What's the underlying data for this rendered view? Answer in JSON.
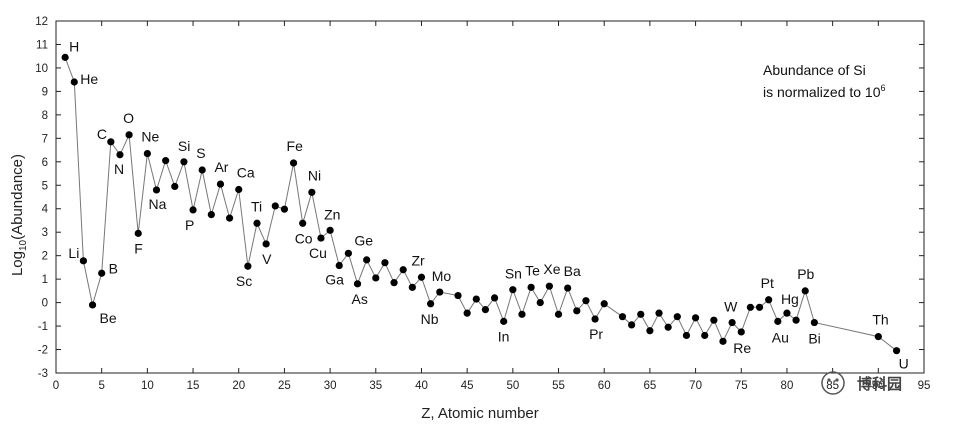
{
  "chart_data": {
    "type": "line",
    "xlabel": "Z, Atomic number",
    "ylabel_main": "Log",
    "ylabel_sub": "10",
    "ylabel_rest": "(Abundance)",
    "xlim": [
      0,
      95
    ],
    "ylim": [
      -3,
      12
    ],
    "xticks": [
      0,
      5,
      10,
      15,
      20,
      25,
      30,
      35,
      40,
      45,
      50,
      55,
      60,
      65,
      70,
      75,
      80,
      85,
      90,
      95
    ],
    "yticks": [
      -3,
      -2,
      -1,
      0,
      1,
      2,
      3,
      4,
      5,
      6,
      7,
      8,
      9,
      10,
      11,
      12
    ],
    "annotation": {
      "line1": "Abundance of Si",
      "line2_main": "is normalized to 10",
      "line2_sup": "6"
    },
    "points": [
      [
        1,
        10.45
      ],
      [
        2,
        9.4
      ],
      [
        3,
        1.78
      ],
      [
        4,
        -0.1
      ],
      [
        5,
        1.25
      ],
      [
        6,
        6.85
      ],
      [
        7,
        6.3
      ],
      [
        8,
        7.15
      ],
      [
        9,
        2.95
      ],
      [
        10,
        6.35
      ],
      [
        11,
        4.8
      ],
      [
        12,
        6.05
      ],
      [
        13,
        4.95
      ],
      [
        14,
        6.0
      ],
      [
        15,
        3.95
      ],
      [
        16,
        5.65
      ],
      [
        17,
        3.75
      ],
      [
        18,
        5.05
      ],
      [
        19,
        3.6
      ],
      [
        20,
        4.82
      ],
      [
        21,
        1.55
      ],
      [
        22,
        3.38
      ],
      [
        23,
        2.5
      ],
      [
        24,
        4.12
      ],
      [
        25,
        3.98
      ],
      [
        26,
        5.95
      ],
      [
        27,
        3.38
      ],
      [
        28,
        4.7
      ],
      [
        29,
        2.75
      ],
      [
        30,
        3.08
      ],
      [
        31,
        1.58
      ],
      [
        32,
        2.1
      ],
      [
        33,
        0.8
      ],
      [
        34,
        1.82
      ],
      [
        35,
        1.05
      ],
      [
        36,
        1.7
      ],
      [
        37,
        0.85
      ],
      [
        38,
        1.4
      ],
      [
        39,
        0.65
      ],
      [
        40,
        1.08
      ],
      [
        41,
        -0.05
      ],
      [
        42,
        0.45
      ],
      [
        44,
        0.3
      ],
      [
        45,
        -0.45
      ],
      [
        46,
        0.15
      ],
      [
        47,
        -0.3
      ],
      [
        48,
        0.2
      ],
      [
        49,
        -0.8
      ],
      [
        50,
        0.55
      ],
      [
        51,
        -0.5
      ],
      [
        52,
        0.65
      ],
      [
        53,
        0.0
      ],
      [
        54,
        0.7
      ],
      [
        55,
        -0.5
      ],
      [
        56,
        0.62
      ],
      [
        57,
        -0.35
      ],
      [
        58,
        0.08
      ],
      [
        59,
        -0.7
      ],
      [
        60,
        -0.05
      ],
      [
        62,
        -0.6
      ],
      [
        63,
        -0.95
      ],
      [
        64,
        -0.5
      ],
      [
        65,
        -1.2
      ],
      [
        66,
        -0.45
      ],
      [
        67,
        -1.05
      ],
      [
        68,
        -0.6
      ],
      [
        69,
        -1.4
      ],
      [
        70,
        -0.65
      ],
      [
        71,
        -1.4
      ],
      [
        72,
        -0.75
      ],
      [
        73,
        -1.65
      ],
      [
        74,
        -0.85
      ],
      [
        75,
        -1.25
      ],
      [
        76,
        -0.2
      ],
      [
        77,
        -0.2
      ],
      [
        78,
        0.12
      ],
      [
        79,
        -0.8
      ],
      [
        80,
        -0.45
      ],
      [
        81,
        -0.75
      ],
      [
        82,
        0.5
      ],
      [
        83,
        -0.85
      ],
      [
        90,
        -1.45
      ],
      [
        92,
        -2.05
      ]
    ],
    "labels": [
      {
        "text": "H",
        "z": 1
      },
      {
        "text": "He",
        "z": 2
      },
      {
        "text": "Li",
        "z": 3
      },
      {
        "text": "Be",
        "z": 4
      },
      {
        "text": "B",
        "z": 5
      },
      {
        "text": "C",
        "z": 6
      },
      {
        "text": "N",
        "z": 7
      },
      {
        "text": "O",
        "z": 8
      },
      {
        "text": "F",
        "z": 9
      },
      {
        "text": "Ne",
        "z": 10
      },
      {
        "text": "Na",
        "z": 11
      },
      {
        "text": "Si",
        "z": 14
      },
      {
        "text": "P",
        "z": 15
      },
      {
        "text": "S",
        "z": 16
      },
      {
        "text": "Ar",
        "z": 18
      },
      {
        "text": "Ca",
        "z": 20
      },
      {
        "text": "Sc",
        "z": 21
      },
      {
        "text": "Ti",
        "z": 22
      },
      {
        "text": "V",
        "z": 23
      },
      {
        "text": "Fe",
        "z": 26
      },
      {
        "text": "Co",
        "z": 27
      },
      {
        "text": "Ni",
        "z": 28
      },
      {
        "text": "Cu",
        "z": 29
      },
      {
        "text": "Zn",
        "z": 30
      },
      {
        "text": "Ga",
        "z": 31
      },
      {
        "text": "Ge",
        "z": 32
      },
      {
        "text": "As",
        "z": 33
      },
      {
        "text": "Zr",
        "z": 40
      },
      {
        "text": "Nb",
        "z": 41
      },
      {
        "text": "Mo",
        "z": 42
      },
      {
        "text": "Sn",
        "z": 50
      },
      {
        "text": "In",
        "z": 49
      },
      {
        "text": "Te",
        "z": 52
      },
      {
        "text": "Xe",
        "z": 54
      },
      {
        "text": "Ba",
        "z": 56
      },
      {
        "text": "Pr",
        "z": 59
      },
      {
        "text": "W",
        "z": 74
      },
      {
        "text": "Re",
        "z": 75
      },
      {
        "text": "Pt",
        "z": 78
      },
      {
        "text": "Au",
        "z": 79
      },
      {
        "text": "Hg",
        "z": 80
      },
      {
        "text": "Pb",
        "z": 82
      },
      {
        "text": "Bi",
        "z": 83
      },
      {
        "text": "Th",
        "z": 90
      },
      {
        "text": "U",
        "z": 92
      }
    ],
    "marker_color": "#000000",
    "line_color": "#777777"
  },
  "watermark": "博科园"
}
